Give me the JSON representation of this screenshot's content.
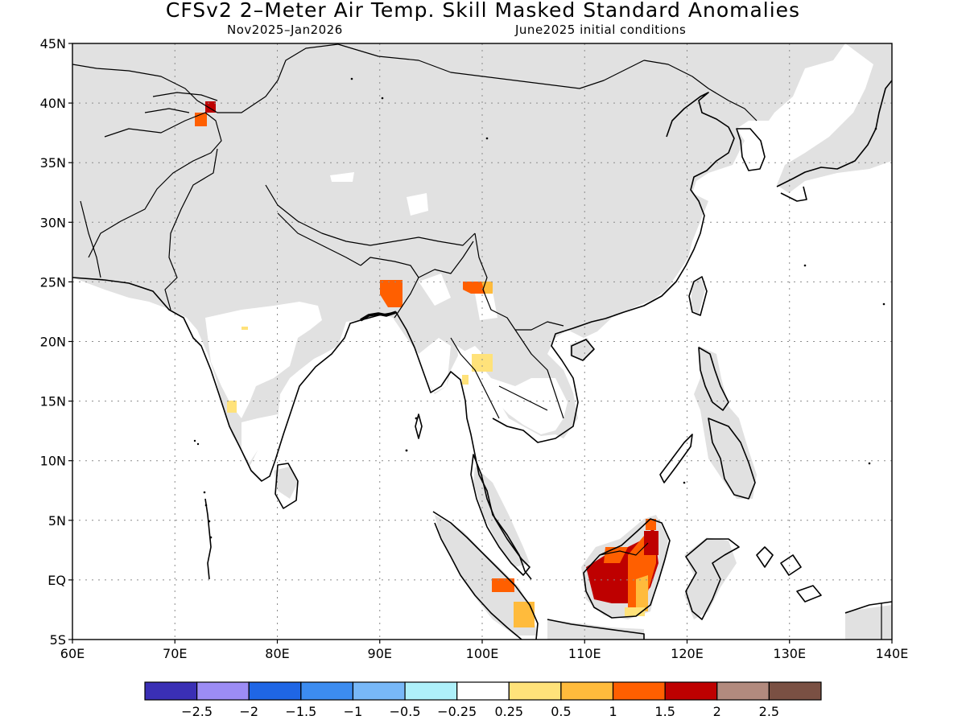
{
  "title": "CFSv2 2–Meter Air Temp. Skill Masked Standard Anomalies",
  "subtitle_left": "Nov2025–Jan2026",
  "subtitle_right": "June2025 initial conditions",
  "map": {
    "lon_range": [
      60,
      140
    ],
    "lat_range": [
      -5,
      45
    ],
    "x_ticks": [
      "60E",
      "70E",
      "80E",
      "90E",
      "100E",
      "110E",
      "120E",
      "130E",
      "140E"
    ],
    "y_ticks": [
      "45N",
      "40N",
      "35N",
      "30N",
      "25N",
      "20N",
      "15N",
      "10N",
      "5N",
      "EQ",
      "5S"
    ],
    "grid": true,
    "land_masked_color": "#e1e1e1",
    "anomaly_patches": [
      {
        "region": "Tarim/Kashmir",
        "lon": 73.3,
        "lat": 39.3,
        "level": "dark_red"
      },
      {
        "region": "Tarim/Kashmir",
        "lon": 72.5,
        "lat": 38.3,
        "level": "orange"
      },
      {
        "region": "Bangladesh",
        "lon": 91.2,
        "lat": 23.8,
        "level": "orange"
      },
      {
        "region": "Yunnan",
        "lon": 99.5,
        "lat": 24.6,
        "level": "orange"
      },
      {
        "region": "Myanmar",
        "lon": 100.0,
        "lat": 18.2,
        "level": "light_yellow"
      },
      {
        "region": "Western Ghats",
        "lon": 75.5,
        "lat": 14.6,
        "level": "light_yellow"
      },
      {
        "region": "Sumatra",
        "lon": 101.0,
        "lat": -0.5,
        "level": "orange"
      },
      {
        "region": "Sumatra south",
        "lon": 103.5,
        "lat": -3.3,
        "level": "yellow"
      },
      {
        "region": "Borneo",
        "lon": 113.0,
        "lat": 0.0,
        "level": "dark_red"
      }
    ]
  },
  "colorbar": {
    "colors": [
      "#3a2fb5",
      "#9c8cf5",
      "#1f66e5",
      "#3c8cf0",
      "#78b8f8",
      "#aef0fa",
      "#ffffff",
      "#ffe27a",
      "#ffbb3c",
      "#ff5f00",
      "#be0000",
      "#b28a7e",
      "#7a5043"
    ],
    "labels": [
      "−2.5",
      "−2",
      "−1.5",
      "−1",
      "−0.5",
      "−0.25",
      "0.25",
      "0.5",
      "1",
      "1.5",
      "2",
      "2.5"
    ]
  }
}
